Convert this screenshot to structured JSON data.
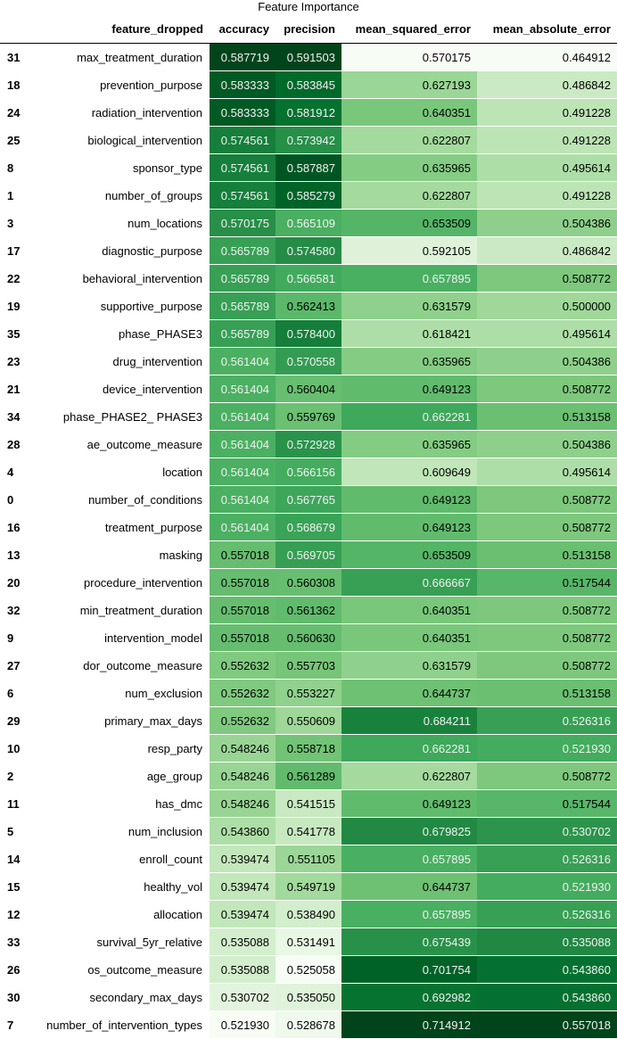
{
  "caption": "Feature Importance",
  "columns": [
    "feature_dropped",
    "accuracy",
    "precision",
    "mean_squared_error",
    "mean_absolute_error"
  ],
  "color_scale": {
    "name": "Greens",
    "low": "#f7fcf5",
    "high": "#00441b",
    "text_light_on_dark": "#f1f1f1",
    "text_dark_on_light": "#000000"
  },
  "rows": [
    {
      "index": "31",
      "feature_dropped": "max_treatment_duration",
      "accuracy": "0.587719",
      "precision": "0.591503",
      "mean_squared_error": "0.570175",
      "mean_absolute_error": "0.464912"
    },
    {
      "index": "18",
      "feature_dropped": "prevention_purpose",
      "accuracy": "0.583333",
      "precision": "0.583845",
      "mean_squared_error": "0.627193",
      "mean_absolute_error": "0.486842"
    },
    {
      "index": "24",
      "feature_dropped": "radiation_intervention",
      "accuracy": "0.583333",
      "precision": "0.581912",
      "mean_squared_error": "0.640351",
      "mean_absolute_error": "0.491228"
    },
    {
      "index": "25",
      "feature_dropped": "biological_intervention",
      "accuracy": "0.574561",
      "precision": "0.573942",
      "mean_squared_error": "0.622807",
      "mean_absolute_error": "0.491228"
    },
    {
      "index": "8",
      "feature_dropped": "sponsor_type",
      "accuracy": "0.574561",
      "precision": "0.587887",
      "mean_squared_error": "0.635965",
      "mean_absolute_error": "0.495614"
    },
    {
      "index": "1",
      "feature_dropped": "number_of_groups",
      "accuracy": "0.574561",
      "precision": "0.585279",
      "mean_squared_error": "0.622807",
      "mean_absolute_error": "0.491228"
    },
    {
      "index": "3",
      "feature_dropped": "num_locations",
      "accuracy": "0.570175",
      "precision": "0.565109",
      "mean_squared_error": "0.653509",
      "mean_absolute_error": "0.504386"
    },
    {
      "index": "17",
      "feature_dropped": "diagnostic_purpose",
      "accuracy": "0.565789",
      "precision": "0.574580",
      "mean_squared_error": "0.592105",
      "mean_absolute_error": "0.486842"
    },
    {
      "index": "22",
      "feature_dropped": "behavioral_intervention",
      "accuracy": "0.565789",
      "precision": "0.566581",
      "mean_squared_error": "0.657895",
      "mean_absolute_error": "0.508772"
    },
    {
      "index": "19",
      "feature_dropped": "supportive_purpose",
      "accuracy": "0.565789",
      "precision": "0.562413",
      "mean_squared_error": "0.631579",
      "mean_absolute_error": "0.500000"
    },
    {
      "index": "35",
      "feature_dropped": "phase_PHASE3",
      "accuracy": "0.565789",
      "precision": "0.578400",
      "mean_squared_error": "0.618421",
      "mean_absolute_error": "0.495614"
    },
    {
      "index": "23",
      "feature_dropped": "drug_intervention",
      "accuracy": "0.561404",
      "precision": "0.570558",
      "mean_squared_error": "0.635965",
      "mean_absolute_error": "0.504386"
    },
    {
      "index": "21",
      "feature_dropped": "device_intervention",
      "accuracy": "0.561404",
      "precision": "0.560404",
      "mean_squared_error": "0.649123",
      "mean_absolute_error": "0.508772"
    },
    {
      "index": "34",
      "feature_dropped": "phase_PHASE2_ PHASE3",
      "accuracy": "0.561404",
      "precision": "0.559769",
      "mean_squared_error": "0.662281",
      "mean_absolute_error": "0.513158"
    },
    {
      "index": "28",
      "feature_dropped": "ae_outcome_measure",
      "accuracy": "0.561404",
      "precision": "0.572928",
      "mean_squared_error": "0.635965",
      "mean_absolute_error": "0.504386"
    },
    {
      "index": "4",
      "feature_dropped": "location",
      "accuracy": "0.561404",
      "precision": "0.566156",
      "mean_squared_error": "0.609649",
      "mean_absolute_error": "0.495614"
    },
    {
      "index": "0",
      "feature_dropped": "number_of_conditions",
      "accuracy": "0.561404",
      "precision": "0.567765",
      "mean_squared_error": "0.649123",
      "mean_absolute_error": "0.508772"
    },
    {
      "index": "16",
      "feature_dropped": "treatment_purpose",
      "accuracy": "0.561404",
      "precision": "0.568679",
      "mean_squared_error": "0.649123",
      "mean_absolute_error": "0.508772"
    },
    {
      "index": "13",
      "feature_dropped": "masking",
      "accuracy": "0.557018",
      "precision": "0.569705",
      "mean_squared_error": "0.653509",
      "mean_absolute_error": "0.513158"
    },
    {
      "index": "20",
      "feature_dropped": "procedure_intervention",
      "accuracy": "0.557018",
      "precision": "0.560308",
      "mean_squared_error": "0.666667",
      "mean_absolute_error": "0.517544"
    },
    {
      "index": "32",
      "feature_dropped": "min_treatment_duration",
      "accuracy": "0.557018",
      "precision": "0.561362",
      "mean_squared_error": "0.640351",
      "mean_absolute_error": "0.508772"
    },
    {
      "index": "9",
      "feature_dropped": "intervention_model",
      "accuracy": "0.557018",
      "precision": "0.560630",
      "mean_squared_error": "0.640351",
      "mean_absolute_error": "0.508772"
    },
    {
      "index": "27",
      "feature_dropped": "dor_outcome_measure",
      "accuracy": "0.552632",
      "precision": "0.557703",
      "mean_squared_error": "0.631579",
      "mean_absolute_error": "0.508772"
    },
    {
      "index": "6",
      "feature_dropped": "num_exclusion",
      "accuracy": "0.552632",
      "precision": "0.553227",
      "mean_squared_error": "0.644737",
      "mean_absolute_error": "0.513158"
    },
    {
      "index": "29",
      "feature_dropped": "primary_max_days",
      "accuracy": "0.552632",
      "precision": "0.550609",
      "mean_squared_error": "0.684211",
      "mean_absolute_error": "0.526316"
    },
    {
      "index": "10",
      "feature_dropped": "resp_party",
      "accuracy": "0.548246",
      "precision": "0.558718",
      "mean_squared_error": "0.662281",
      "mean_absolute_error": "0.521930"
    },
    {
      "index": "2",
      "feature_dropped": "age_group",
      "accuracy": "0.548246",
      "precision": "0.561289",
      "mean_squared_error": "0.622807",
      "mean_absolute_error": "0.508772"
    },
    {
      "index": "11",
      "feature_dropped": "has_dmc",
      "accuracy": "0.548246",
      "precision": "0.541515",
      "mean_squared_error": "0.649123",
      "mean_absolute_error": "0.517544"
    },
    {
      "index": "5",
      "feature_dropped": "num_inclusion",
      "accuracy": "0.543860",
      "precision": "0.541778",
      "mean_squared_error": "0.679825",
      "mean_absolute_error": "0.530702"
    },
    {
      "index": "14",
      "feature_dropped": "enroll_count",
      "accuracy": "0.539474",
      "precision": "0.551105",
      "mean_squared_error": "0.657895",
      "mean_absolute_error": "0.526316"
    },
    {
      "index": "15",
      "feature_dropped": "healthy_vol",
      "accuracy": "0.539474",
      "precision": "0.549719",
      "mean_squared_error": "0.644737",
      "mean_absolute_error": "0.521930"
    },
    {
      "index": "12",
      "feature_dropped": "allocation",
      "accuracy": "0.539474",
      "precision": "0.538490",
      "mean_squared_error": "0.657895",
      "mean_absolute_error": "0.526316"
    },
    {
      "index": "33",
      "feature_dropped": "survival_5yr_relative",
      "accuracy": "0.535088",
      "precision": "0.531491",
      "mean_squared_error": "0.675439",
      "mean_absolute_error": "0.535088"
    },
    {
      "index": "26",
      "feature_dropped": "os_outcome_measure",
      "accuracy": "0.535088",
      "precision": "0.525058",
      "mean_squared_error": "0.701754",
      "mean_absolute_error": "0.543860"
    },
    {
      "index": "30",
      "feature_dropped": "secondary_max_days",
      "accuracy": "0.530702",
      "precision": "0.535050",
      "mean_squared_error": "0.692982",
      "mean_absolute_error": "0.543860"
    },
    {
      "index": "7",
      "feature_dropped": "number_of_intervention_types",
      "accuracy": "0.521930",
      "precision": "0.528678",
      "mean_squared_error": "0.714912",
      "mean_absolute_error": "0.557018"
    }
  ]
}
